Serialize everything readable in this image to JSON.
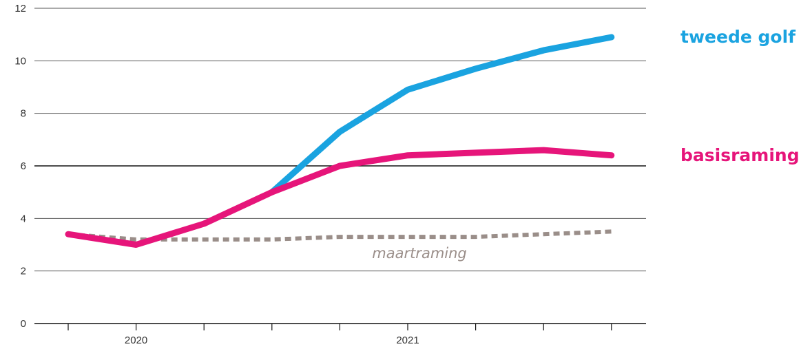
{
  "chart_data": {
    "type": "line",
    "x": [
      0,
      1,
      2,
      3,
      4,
      5,
      6,
      7,
      8
    ],
    "x_tick_labels": [
      {
        "x": 1,
        "label": "2020"
      },
      {
        "x": 5,
        "label": "2021"
      }
    ],
    "x_tick_marks": [
      0,
      1,
      2,
      3,
      4,
      5,
      6,
      7,
      8
    ],
    "xlim": [
      -0.5,
      8.5
    ],
    "ylim": [
      0,
      12
    ],
    "y_ticks": [
      0,
      2,
      4,
      6,
      8,
      10,
      12
    ],
    "y_tick_labels": [
      "0",
      "2",
      "4",
      "6",
      "8",
      "10",
      "12"
    ],
    "emphasized_gridline": 6,
    "grid": true,
    "title": "",
    "xlabel": "",
    "ylabel": "",
    "series": [
      {
        "name": "maartraming",
        "style": "dotted",
        "color": "#9a8e89",
        "x": [
          0,
          1,
          2,
          3,
          4,
          5,
          6,
          7,
          8
        ],
        "values": [
          3.4,
          3.2,
          3.2,
          3.2,
          3.3,
          3.3,
          3.3,
          3.4,
          3.5
        ]
      },
      {
        "name": "tweede golf",
        "style": "solid",
        "color": "#1aa3e0",
        "x": [
          3,
          4,
          5,
          6,
          7,
          8
        ],
        "values": [
          5.0,
          7.3,
          8.9,
          9.7,
          10.4,
          10.9
        ]
      },
      {
        "name": "basisraming",
        "style": "solid",
        "color": "#e6157a",
        "x": [
          0,
          1,
          2,
          3,
          4,
          5,
          6,
          7,
          8
        ],
        "values": [
          3.4,
          3.0,
          3.8,
          5.0,
          6.0,
          6.4,
          6.5,
          6.6,
          6.4
        ]
      }
    ]
  }
}
